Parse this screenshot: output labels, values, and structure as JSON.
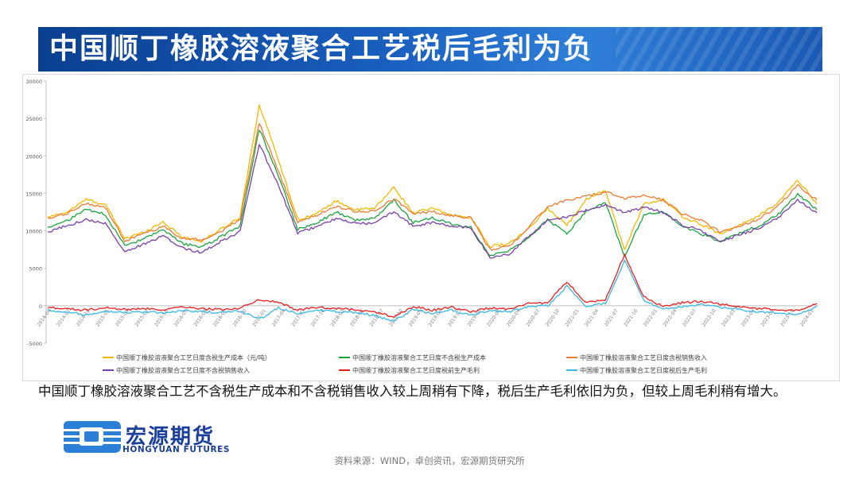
{
  "title": "中国顺丁橡胶溶液聚合工艺税后毛利为负",
  "description": "中国顺丁橡胶溶液聚合工艺不含税生产成本和不含税销售收入较上周稍有下降，税后生产毛利依旧为负，但较上周毛利稍有增大。",
  "logo": {
    "cn": "宏源期货",
    "en": "HONGYUAN FUTURES"
  },
  "source": "资料来源：WIND，卓创资讯，宏源期货研究所",
  "chart_data": {
    "type": "line",
    "title": "",
    "xlabel": "",
    "ylabel": "",
    "ylim": [
      -5000,
      30000
    ],
    "yticks": [
      "30000",
      "25000",
      "20000",
      "15000",
      "10000",
      "5000",
      "0",
      "-5000"
    ],
    "grid": false,
    "legend_position": "bottom",
    "x_start": "2014-04",
    "x_end": "2024-02",
    "x_ticks": [
      "2014-04",
      "2014-07",
      "2014-10",
      "2015-01",
      "2015-04",
      "2015-07",
      "2015-10",
      "2016-01",
      "2016-04",
      "2016-07",
      "2016-10",
      "2017-01",
      "2017-04",
      "2017-07",
      "2017-10",
      "2018-01",
      "2018-04",
      "2018-07",
      "2018-10",
      "2019-01",
      "2019-04",
      "2019-07",
      "2019-10",
      "2020-01",
      "2020-04",
      "2020-07",
      "2020-10",
      "2021-01",
      "2021-04",
      "2021-07",
      "2021-10",
      "2022-01",
      "2022-04",
      "2022-07",
      "2022-10",
      "2023-01",
      "2023-04",
      "2023-07",
      "2023-10",
      "2024-01"
    ],
    "series": [
      {
        "name": "中国顺丁橡胶溶液聚合工艺日度含税生产成本（元/吨）",
        "color": "#f2b800",
        "values": [
          11800,
          12500,
          14200,
          13500,
          9000,
          9800,
          11200,
          9200,
          8600,
          10200,
          11800,
          26800,
          19500,
          11500,
          12300,
          14000,
          12800,
          13000,
          15800,
          12400,
          13000,
          12100,
          11800,
          7900,
          8300,
          10200,
          13000,
          10800,
          14200,
          15500,
          7400,
          13600,
          14200,
          11900,
          10800,
          9600,
          10800,
          12000,
          13800,
          16800,
          13600
        ]
      },
      {
        "name": "中国顺丁橡胶溶液聚合工艺日度不含税生产成本",
        "color": "#1aa33f",
        "values": [
          10500,
          11300,
          12900,
          12200,
          8000,
          8900,
          10100,
          8300,
          7800,
          9200,
          10600,
          23600,
          17400,
          10200,
          11100,
          12500,
          11400,
          11700,
          14100,
          11100,
          11700,
          10900,
          10500,
          6700,
          7300,
          9000,
          11500,
          9600,
          12600,
          13800,
          6600,
          12100,
          12600,
          10600,
          9600,
          8600,
          9700,
          10700,
          12200,
          14900,
          12800
        ]
      },
      {
        "name": "中国顺丁橡胶溶液聚合工艺日度含税销售收入",
        "color": "#ec7b35",
        "values": [
          11600,
          12300,
          13700,
          13100,
          8600,
          9600,
          10600,
          9000,
          8800,
          9900,
          11500,
          24400,
          18000,
          11200,
          12100,
          13300,
          12600,
          12600,
          14300,
          12300,
          12600,
          12000,
          11800,
          7500,
          7900,
          10500,
          13200,
          14100,
          14600,
          15200,
          14300,
          14800,
          14100,
          12300,
          11400,
          9800,
          10600,
          11600,
          13300,
          16100,
          14100
        ]
      },
      {
        "name": "中国顺丁橡胶溶液聚合工艺日度不含税销售收入",
        "color": "#7b3fa8",
        "values": [
          9800,
          10700,
          11500,
          11000,
          7200,
          8200,
          9300,
          7700,
          7100,
          8600,
          9900,
          21600,
          16000,
          9700,
          10600,
          11600,
          11000,
          11000,
          12600,
          10600,
          11100,
          10600,
          10400,
          6400,
          6900,
          9200,
          11400,
          11900,
          12700,
          13400,
          12500,
          13100,
          12500,
          10800,
          10000,
          8500,
          9500,
          10400,
          11700,
          14200,
          12400
        ]
      },
      {
        "name": "中国顺丁橡胶溶液聚合工艺日度税前生产毛利",
        "color": "#e61e1e",
        "values": [
          -200,
          -400,
          -600,
          -300,
          -500,
          -400,
          -600,
          -200,
          -400,
          -500,
          -300,
          800,
          500,
          -600,
          -200,
          -400,
          -500,
          -800,
          -1500,
          -100,
          -600,
          -200,
          -800,
          -300,
          -400,
          300,
          400,
          3200,
          400,
          800,
          6800,
          1200,
          -100,
          400,
          600,
          200,
          -100,
          -400,
          -500,
          -700,
          300
        ]
      },
      {
        "name": "中国顺丁橡胶溶液聚合工艺日度税后生产毛利",
        "color": "#39b8e6",
        "values": [
          -600,
          -800,
          -1200,
          -700,
          -900,
          -800,
          -1000,
          -600,
          -800,
          -900,
          -700,
          -1800,
          -300,
          -1100,
          -600,
          -800,
          -900,
          -1300,
          -2100,
          -500,
          -1000,
          -600,
          -1300,
          -700,
          -800,
          -100,
          0,
          2600,
          -100,
          300,
          6000,
          700,
          -500,
          -100,
          200,
          -200,
          -500,
          -800,
          -900,
          -1200,
          -100
        ]
      }
    ]
  }
}
